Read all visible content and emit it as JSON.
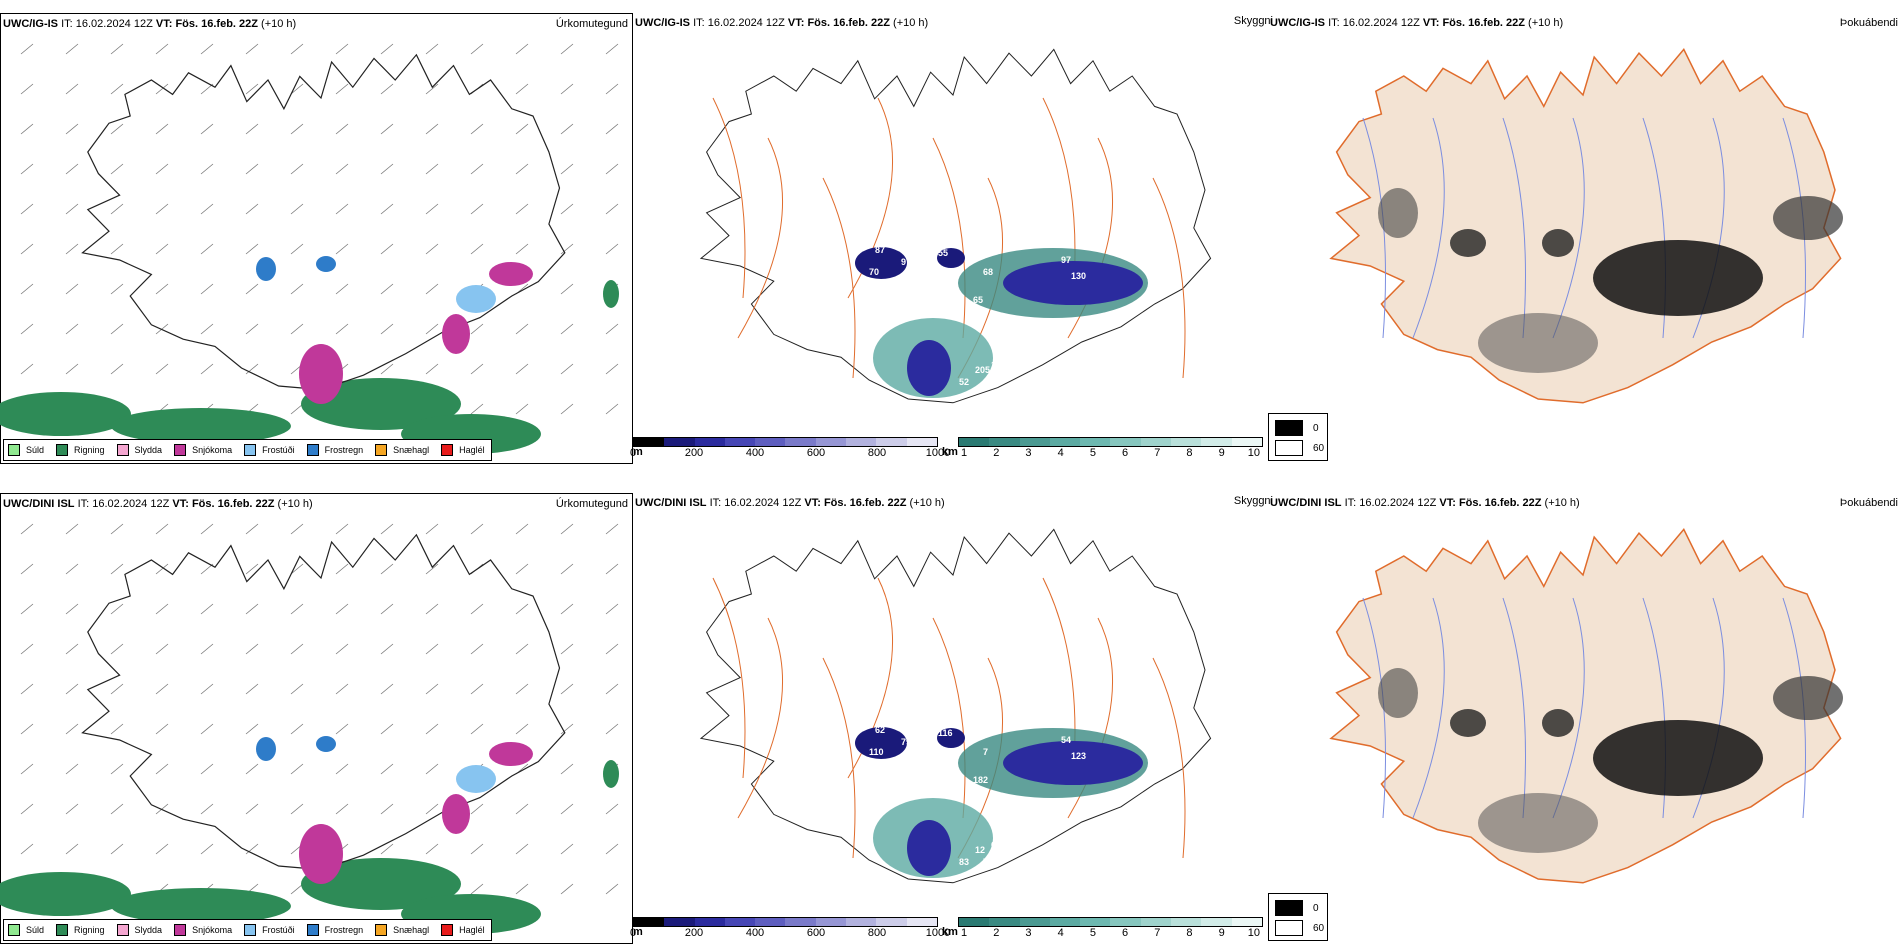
{
  "rows": [
    {
      "model": "UWC/IG-IS",
      "it_label": "IT:",
      "it_value": "16.02.2024 12Z",
      "vt_label": "VT:",
      "vt_value": "Fös. 16.feb. 22Z",
      "lead": "(+10 h)",
      "labels": [
        "97",
        "95",
        "87",
        "70",
        "55",
        "8",
        "65",
        "64",
        "68",
        "97",
        "130",
        "96",
        "114",
        "282",
        "205",
        "52",
        "22"
      ]
    },
    {
      "model": "UWC/DINI ISL",
      "it_label": "IT:",
      "it_value": "16.02.2024 12Z",
      "vt_label": "VT:",
      "vt_value": "Fös. 16.feb. 22Z",
      "lead": "(+10 h)",
      "labels": [
        "79",
        "65",
        "62",
        "110",
        "116",
        "107",
        "182",
        "65",
        "7",
        "54",
        "123",
        "25",
        "60",
        "76",
        "12",
        "83"
      ]
    }
  ],
  "panel_titles": {
    "precip": "Úrkomutegund",
    "visibility": "Skyggni",
    "fog": "Þokuábendi"
  },
  "precip_legend": [
    {
      "label": "Súld",
      "color": "#8fe88f"
    },
    {
      "label": "Rigning",
      "color": "#2e8b57"
    },
    {
      "label": "Slydda",
      "color": "#f4a6d0"
    },
    {
      "label": "Snjókoma",
      "color": "#c0389a"
    },
    {
      "label": "Frostúði",
      "color": "#87c4f0"
    },
    {
      "label": "Frostregn",
      "color": "#2e7cc9"
    },
    {
      "label": "Snæhagl",
      "color": "#f5a623"
    },
    {
      "label": "Haglél",
      "color": "#e81c1c"
    }
  ],
  "ceiling_bar": {
    "unit": "m",
    "ticks": [
      "0",
      "200",
      "400",
      "600",
      "800",
      "1000"
    ],
    "colors": [
      "#000000",
      "#1a1a7a",
      "#2b2b9e",
      "#4646b5",
      "#5e5ebf",
      "#7a7ac9",
      "#9696d4",
      "#b2b2de",
      "#cdcde9",
      "#e6e6f4"
    ]
  },
  "visibility_bar": {
    "unit": "km",
    "ticks": [
      "1",
      "2",
      "3",
      "4",
      "5",
      "6",
      "7",
      "8",
      "9",
      "10"
    ],
    "colors": [
      "#2a7a72",
      "#3a8a82",
      "#4b9a92",
      "#5caaa2",
      "#6db8b0",
      "#86c6be",
      "#9fd3cc",
      "#b9e0da",
      "#d2ece8",
      "#ebf7f5"
    ]
  },
  "fog_legend": [
    {
      "label": "0",
      "color": "#000000"
    },
    {
      "label": "60",
      "color": "#ffffff"
    }
  ],
  "colors": {
    "land": "#f3e3d3",
    "roads": "#e06c2c",
    "rivers": "#7b8de0",
    "rain": "#2e8b57",
    "snow": "#c0389a"
  }
}
